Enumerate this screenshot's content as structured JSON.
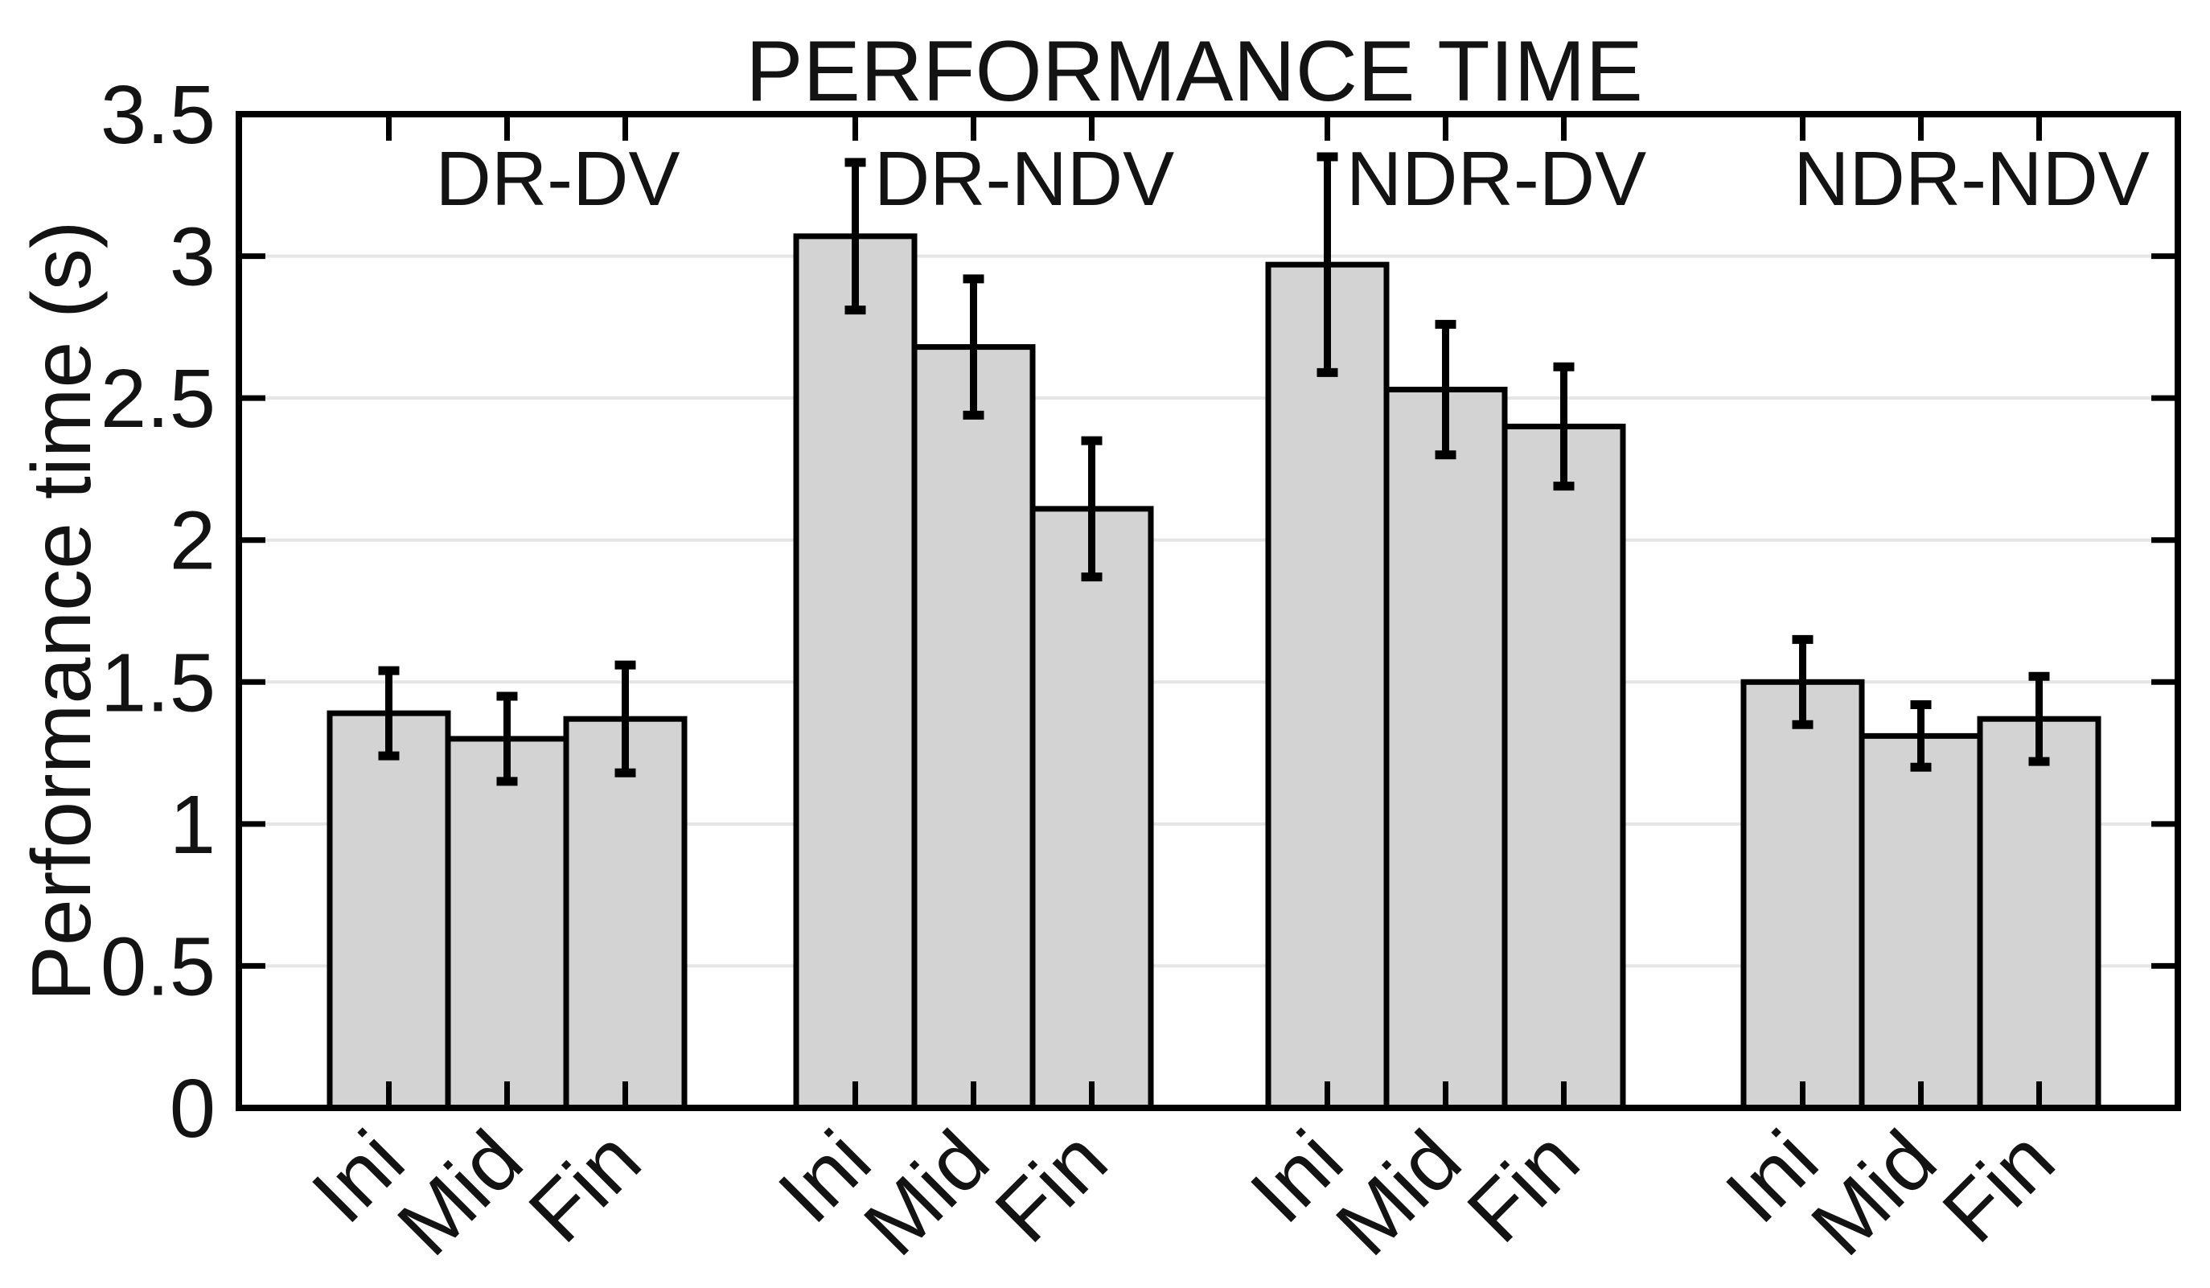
{
  "title": "PERFORMANCE TIME",
  "chart_data": {
    "type": "bar",
    "title": "PERFORMANCE TIME",
    "xlabel": "",
    "ylabel": "Performance time (s)",
    "ylim": [
      0,
      3.5
    ],
    "ytick_step": 0.5,
    "ytick_labels": [
      "0",
      "0.5",
      "1",
      "1.5",
      "2",
      "2.5",
      "3",
      "3.5"
    ],
    "grid": true,
    "legend": "none",
    "categories": [
      "Ini",
      "Mid",
      "Fin"
    ],
    "groups": [
      {
        "label": "DR-DV",
        "values": [
          1.39,
          1.3,
          1.37
        ],
        "errors": [
          0.15,
          0.15,
          0.19
        ]
      },
      {
        "label": "DR-NDV",
        "values": [
          3.07,
          2.68,
          2.11
        ],
        "errors": [
          0.26,
          0.24,
          0.24
        ]
      },
      {
        "label": "NDR-DV",
        "values": [
          2.97,
          2.53,
          2.4
        ],
        "errors": [
          0.38,
          0.23,
          0.21
        ]
      },
      {
        "label": "NDR-NDV",
        "values": [
          1.5,
          1.31,
          1.37
        ],
        "errors": [
          0.15,
          0.11,
          0.15
        ]
      }
    ],
    "colors": {
      "bar_fill": "#d3d3d3",
      "bar_edge": "#000000",
      "error_bar": "#000000",
      "grid_line": "#e5e5e5",
      "axis_box": "#000000",
      "background": "#ffffff",
      "text": "#131313"
    }
  }
}
